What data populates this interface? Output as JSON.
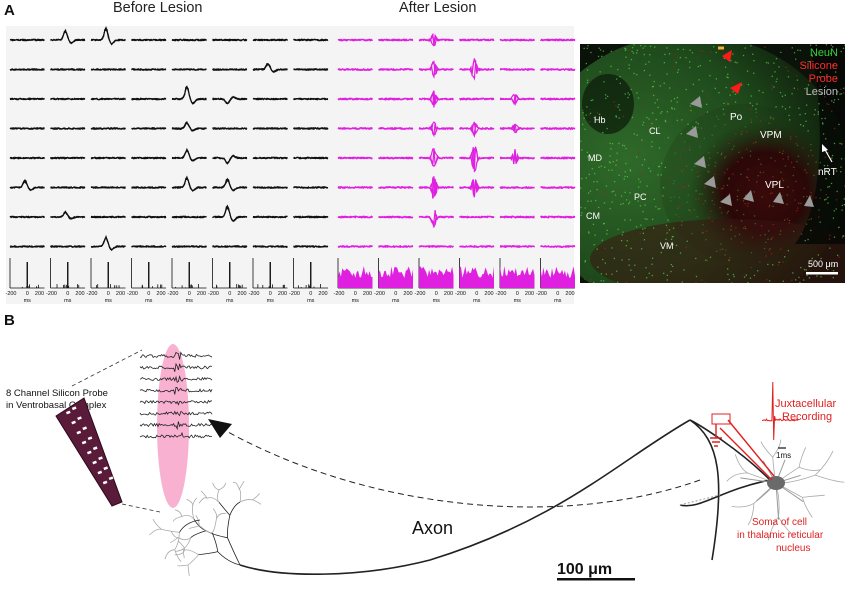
{
  "panel_a": {
    "label": "A",
    "before_title": "Before Lesion",
    "after_title": "After Lesion",
    "before_color": "#111111",
    "after_color": "#e020e0",
    "axis_ticks": [
      "-200",
      "0",
      "200"
    ],
    "axis_unit": "ms"
  },
  "histology": {
    "legend": [
      {
        "text": "NeuN",
        "color": "#35d235"
      },
      {
        "text": "Silicone",
        "color": "#ff2a2a"
      },
      {
        "text": "Probe",
        "color": "#ff2a2a"
      },
      {
        "text": "Lesion",
        "color": "#bdbdbd"
      }
    ],
    "regions": {
      "hb": "Hb",
      "md": "MD",
      "cm": "CM",
      "cl": "CL",
      "pc": "PC",
      "vm": "VM",
      "po": "Po",
      "vpm": "VPM",
      "vpl": "VPL",
      "nrt": "nRT"
    },
    "scalebar": "500 μm"
  },
  "panel_b": {
    "label": "B",
    "probe_label_line1": "8 Channel Silicon Probe",
    "probe_label_line2": "in Ventrobasal Complex",
    "juxta_line1": "Juxtacellular",
    "juxta_line2": "Recording",
    "time_scale": "1ms",
    "soma_line1": "Soma of cell",
    "soma_line2": "in thalamic reticular",
    "soma_line3": "nucleus",
    "axon_label": "Axon",
    "scalebar": "100 μm",
    "annotation_color": "#e02020"
  }
}
